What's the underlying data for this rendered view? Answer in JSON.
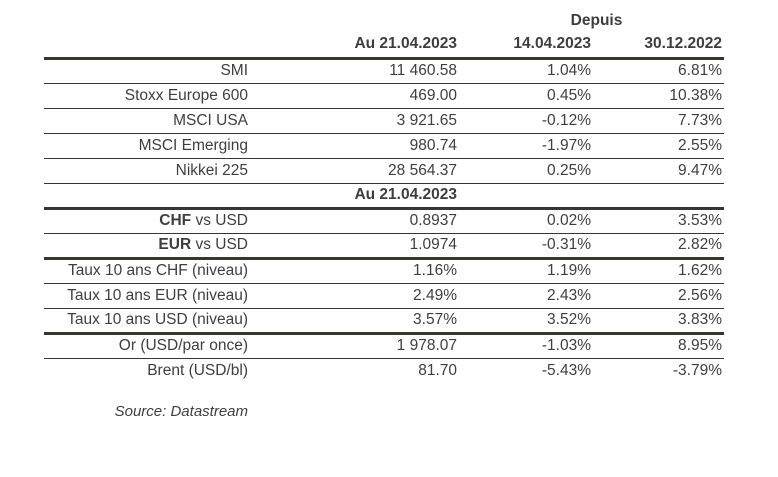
{
  "colors": {
    "text": "#3f3e3e",
    "rule": "#3a352e",
    "background": "#ffffff"
  },
  "table": {
    "group_header": "Depuis",
    "headers": {
      "current": "Au 21.04.2023",
      "since_1": "14.04.2023",
      "since_2": "30.12.2022"
    },
    "rows": [
      {
        "label": "SMI",
        "value": "11 460.58",
        "since_14_04": "1.04%",
        "since_30_12": "6.81%",
        "rule_below": "thin"
      },
      {
        "label": "Stoxx Europe 600",
        "value": "469.00",
        "since_14_04": "0.45%",
        "since_30_12": "10.38%",
        "rule_below": "thin"
      },
      {
        "label": "MSCI USA",
        "value": "3 921.65",
        "since_14_04": "-0.12%",
        "since_30_12": "7.73%",
        "rule_below": "thin"
      },
      {
        "label": "MSCI Emerging",
        "value": "980.74",
        "since_14_04": "-1.97%",
        "since_30_12": "2.55%",
        "rule_below": "thin"
      },
      {
        "label": "Nikkei 225",
        "value": "28 564.37",
        "since_14_04": "0.25%",
        "since_30_12": "9.47%",
        "rule_below": "thin"
      },
      {
        "type": "mid_header",
        "text": "Au 21.04.2023",
        "rule_below": "thick"
      },
      {
        "label_bold": "CHF",
        "label_rest": "vs USD",
        "value": "0.8937",
        "since_14_04": "0.02%",
        "since_30_12": "3.53%",
        "rule_below": "thin"
      },
      {
        "label_bold": "EUR",
        "label_rest": "vs USD",
        "value": "1.0974",
        "since_14_04": "-0.31%",
        "since_30_12": "2.82%",
        "rule_below": "thick"
      },
      {
        "label": "Taux 10 ans CHF (niveau)",
        "value": "1.16%",
        "since_14_04": "1.19%",
        "since_30_12": "1.62%",
        "rule_below": "thin"
      },
      {
        "label": "Taux 10 ans EUR (niveau)",
        "value": "2.49%",
        "since_14_04": "2.43%",
        "since_30_12": "2.56%",
        "rule_below": "thin"
      },
      {
        "label": "Taux 10 ans USD (niveau)",
        "value": "3.57%",
        "since_14_04": "3.52%",
        "since_30_12": "3.83%",
        "rule_below": "thick"
      },
      {
        "label": "Or (USD/par once)",
        "value": "1 978.07",
        "since_14_04": "-1.03%",
        "since_30_12": "8.95%",
        "rule_below": "thin"
      },
      {
        "label": "Brent (USD/bl)",
        "value": "81.70",
        "since_14_04": "-5.43%",
        "since_30_12": "-3.79%",
        "rule_below": "none"
      }
    ],
    "source_note": "Source: Datastream"
  }
}
